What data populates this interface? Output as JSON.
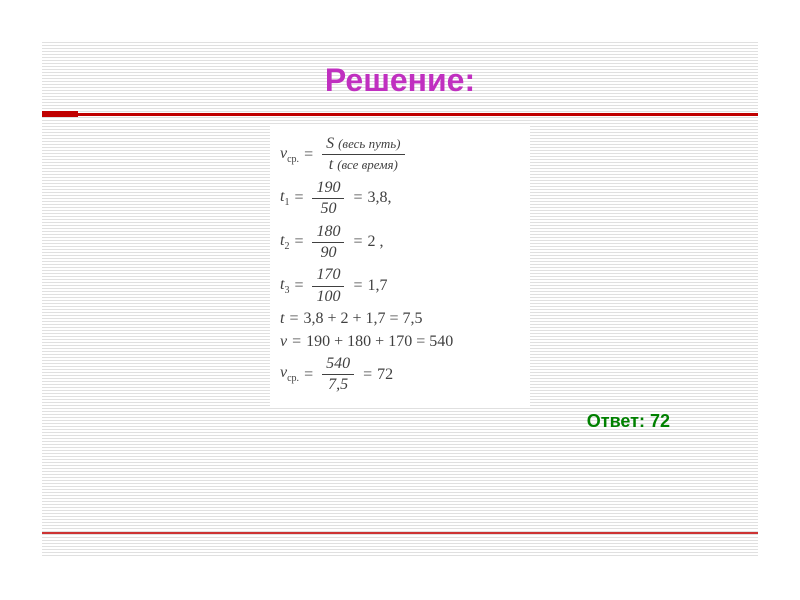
{
  "title": "Решение:",
  "title_color": "#c030c0",
  "title_fontsize": 32,
  "bar_color": "#c00000",
  "hatch_color": "#e0e0e0",
  "background_color": "#ffffff",
  "formula_text_color": "#404040",
  "formula_fontsize": 16,
  "equations": {
    "def": {
      "lhs_var": "v",
      "lhs_sub": "ср.",
      "num_var": "S",
      "num_note": "(весь путь)",
      "den_var": "t",
      "den_note": "(все время)"
    },
    "t1": {
      "lhs_var": "t",
      "lhs_sub": "1",
      "num": "190",
      "den": "50",
      "result": "3,8,"
    },
    "t2": {
      "lhs_var": "t",
      "lhs_sub": "2",
      "num": "180",
      "den": "90",
      "result": "2 ,"
    },
    "t3": {
      "lhs_var": "t",
      "lhs_sub": "3",
      "num": "170",
      "den": "100",
      "result": "1,7"
    },
    "t_sum": {
      "lhs_var": "t",
      "expr": "3,8 + 2 + 1,7 = 7,5"
    },
    "v_sum": {
      "lhs_var": "v",
      "expr": "190 + 180 + 170 = 540"
    },
    "v_avg": {
      "lhs_var": "v",
      "lhs_sub": "ср.",
      "num": "540",
      "den": "7,5",
      "result": "72"
    }
  },
  "answer_label": "Ответ: 72",
  "answer_color": "#008000",
  "answer_fontsize": 18
}
